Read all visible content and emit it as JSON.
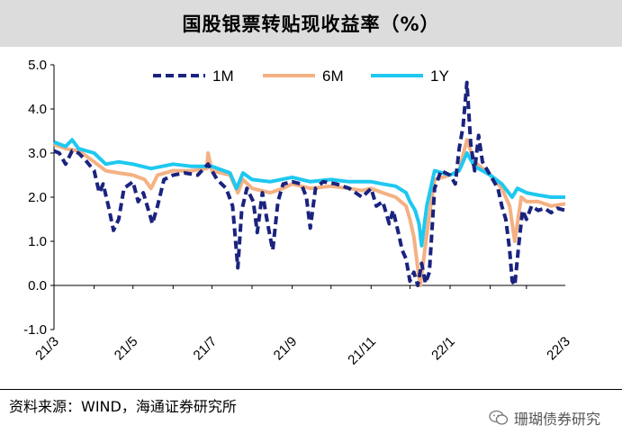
{
  "header": {
    "title": "国股银票转贴现收益率（%）"
  },
  "footer": {
    "source": "资料来源：WIND，海通证券研究所",
    "watermark": "珊瑚债券研究"
  },
  "chart_data": {
    "type": "line",
    "title": "国股银票转贴现收益率（%）",
    "xlabel": "",
    "ylabel": "",
    "ylim": [
      -1.0,
      5.0
    ],
    "yticks": [
      "-1.0",
      "0.0",
      "1.0",
      "2.0",
      "3.0",
      "4.0",
      "5.0"
    ],
    "xticks": [
      "21/3",
      "21/5",
      "21/7",
      "21/9",
      "21/11",
      "22/1",
      "22/3"
    ],
    "xrange": [
      "2021-03-01",
      "2022-03-31"
    ],
    "legend_position": "top",
    "grid": false,
    "series": [
      {
        "name": "1M",
        "color": "#1a237e",
        "style": "dashed",
        "points": [
          [
            "2021-03-01",
            3.05
          ],
          [
            "2021-03-05",
            3.0
          ],
          [
            "2021-03-10",
            2.75
          ],
          [
            "2021-03-15",
            3.05
          ],
          [
            "2021-03-20",
            3.0
          ],
          [
            "2021-03-25",
            2.85
          ],
          [
            "2021-04-01",
            2.6
          ],
          [
            "2021-04-05",
            2.1
          ],
          [
            "2021-04-08",
            2.3
          ],
          [
            "2021-04-12",
            1.8
          ],
          [
            "2021-04-16",
            1.25
          ],
          [
            "2021-04-20",
            1.5
          ],
          [
            "2021-04-24",
            2.2
          ],
          [
            "2021-05-01",
            2.35
          ],
          [
            "2021-05-05",
            1.9
          ],
          [
            "2021-05-09",
            2.1
          ],
          [
            "2021-05-13",
            1.7
          ],
          [
            "2021-05-16",
            1.4
          ],
          [
            "2021-05-20",
            1.8
          ],
          [
            "2021-05-25",
            2.4
          ],
          [
            "2021-06-01",
            2.5
          ],
          [
            "2021-06-10",
            2.55
          ],
          [
            "2021-06-20",
            2.5
          ],
          [
            "2021-06-28",
            2.75
          ],
          [
            "2021-07-05",
            2.4
          ],
          [
            "2021-07-12",
            2.2
          ],
          [
            "2021-07-17",
            1.8
          ],
          [
            "2021-07-21",
            0.4
          ],
          [
            "2021-07-24",
            1.7
          ],
          [
            "2021-07-28",
            2.2
          ],
          [
            "2021-08-02",
            1.9
          ],
          [
            "2021-08-05",
            1.2
          ],
          [
            "2021-08-09",
            2.1
          ],
          [
            "2021-08-13",
            1.4
          ],
          [
            "2021-08-17",
            0.8
          ],
          [
            "2021-08-21",
            1.9
          ],
          [
            "2021-08-25",
            2.3
          ],
          [
            "2021-09-01",
            2.35
          ],
          [
            "2021-09-08",
            2.3
          ],
          [
            "2021-09-12",
            2.0
          ],
          [
            "2021-09-15",
            1.3
          ],
          [
            "2021-09-19",
            2.2
          ],
          [
            "2021-09-25",
            2.35
          ],
          [
            "2021-10-05",
            2.3
          ],
          [
            "2021-10-15",
            2.2
          ],
          [
            "2021-10-25",
            2.0
          ],
          [
            "2021-11-01",
            2.2
          ],
          [
            "2021-11-05",
            1.8
          ],
          [
            "2021-11-10",
            1.9
          ],
          [
            "2021-11-15",
            1.4
          ],
          [
            "2021-11-18",
            1.7
          ],
          [
            "2021-11-22",
            1.2
          ],
          [
            "2021-11-25",
            0.8
          ],
          [
            "2021-11-28",
            0.6
          ],
          [
            "2021-12-01",
            0.1
          ],
          [
            "2021-12-04",
            0.3
          ],
          [
            "2021-12-07",
            0.0
          ],
          [
            "2021-12-10",
            0.5
          ],
          [
            "2021-12-13",
            0.05
          ],
          [
            "2021-12-16",
            0.3
          ],
          [
            "2021-12-20",
            2.2
          ],
          [
            "2021-12-25",
            2.6
          ],
          [
            "2022-01-01",
            2.5
          ],
          [
            "2022-01-05",
            2.3
          ],
          [
            "2022-01-08",
            3.1
          ],
          [
            "2022-01-11",
            3.6
          ],
          [
            "2022-01-14",
            4.6
          ],
          [
            "2022-01-17",
            3.2
          ],
          [
            "2022-01-20",
            2.6
          ],
          [
            "2022-01-23",
            3.4
          ],
          [
            "2022-01-26",
            2.8
          ],
          [
            "2022-02-01",
            2.5
          ],
          [
            "2022-02-07",
            2.2
          ],
          [
            "2022-02-10",
            1.8
          ],
          [
            "2022-02-13",
            1.5
          ],
          [
            "2022-02-16",
            0.8
          ],
          [
            "2022-02-18",
            0.1
          ],
          [
            "2022-02-20",
            0.0
          ],
          [
            "2022-02-23",
            0.9
          ],
          [
            "2022-02-26",
            1.7
          ],
          [
            "2022-03-01",
            1.5
          ],
          [
            "2022-03-05",
            1.8
          ],
          [
            "2022-03-10",
            1.7
          ],
          [
            "2022-03-15",
            1.75
          ],
          [
            "2022-03-20",
            1.65
          ],
          [
            "2022-03-25",
            1.75
          ],
          [
            "2022-03-31",
            1.7
          ]
        ]
      },
      {
        "name": "6M",
        "color": "#f4b183",
        "style": "solid",
        "points": [
          [
            "2021-03-01",
            3.2
          ],
          [
            "2021-03-10",
            3.1
          ],
          [
            "2021-03-20",
            3.05
          ],
          [
            "2021-03-25",
            2.95
          ],
          [
            "2021-04-01",
            2.8
          ],
          [
            "2021-04-10",
            2.6
          ],
          [
            "2021-04-20",
            2.55
          ],
          [
            "2021-05-01",
            2.5
          ],
          [
            "2021-05-10",
            2.4
          ],
          [
            "2021-05-15",
            2.2
          ],
          [
            "2021-05-20",
            2.5
          ],
          [
            "2021-06-01",
            2.6
          ],
          [
            "2021-06-15",
            2.6
          ],
          [
            "2021-06-27",
            2.65
          ],
          [
            "2021-06-28",
            3.0
          ],
          [
            "2021-07-01",
            2.6
          ],
          [
            "2021-07-15",
            2.5
          ],
          [
            "2021-07-21",
            2.1
          ],
          [
            "2021-07-25",
            2.4
          ],
          [
            "2021-08-01",
            2.2
          ],
          [
            "2021-08-15",
            2.1
          ],
          [
            "2021-08-25",
            2.2
          ],
          [
            "2021-09-01",
            2.3
          ],
          [
            "2021-09-15",
            2.2
          ],
          [
            "2021-10-01",
            2.25
          ],
          [
            "2021-10-15",
            2.2
          ],
          [
            "2021-10-25",
            2.15
          ],
          [
            "2021-11-01",
            2.2
          ],
          [
            "2021-11-10",
            2.1
          ],
          [
            "2021-11-20",
            2.0
          ],
          [
            "2021-11-28",
            1.8
          ],
          [
            "2021-12-01",
            1.5
          ],
          [
            "2021-12-04",
            1.1
          ],
          [
            "2021-12-07",
            0.4
          ],
          [
            "2021-12-09",
            0.0
          ],
          [
            "2021-12-12",
            0.7
          ],
          [
            "2021-12-16",
            1.6
          ],
          [
            "2021-12-20",
            2.4
          ],
          [
            "2022-01-01",
            2.5
          ],
          [
            "2022-01-08",
            2.6
          ],
          [
            "2022-01-14",
            3.3
          ],
          [
            "2022-01-20",
            2.8
          ],
          [
            "2022-02-01",
            2.5
          ],
          [
            "2022-02-10",
            2.2
          ],
          [
            "2022-02-16",
            1.8
          ],
          [
            "2022-02-20",
            1.0
          ],
          [
            "2022-02-25",
            2.0
          ],
          [
            "2022-03-01",
            1.9
          ],
          [
            "2022-03-10",
            1.9
          ],
          [
            "2022-03-20",
            1.8
          ],
          [
            "2022-03-31",
            1.85
          ]
        ]
      },
      {
        "name": "1Y",
        "color": "#1ec8f0",
        "style": "solid",
        "points": [
          [
            "2021-03-01",
            3.25
          ],
          [
            "2021-03-10",
            3.15
          ],
          [
            "2021-03-15",
            3.3
          ],
          [
            "2021-03-20",
            3.1
          ],
          [
            "2021-04-01",
            3.0
          ],
          [
            "2021-04-10",
            2.75
          ],
          [
            "2021-04-20",
            2.8
          ],
          [
            "2021-05-01",
            2.75
          ],
          [
            "2021-05-15",
            2.65
          ],
          [
            "2021-06-01",
            2.75
          ],
          [
            "2021-06-15",
            2.7
          ],
          [
            "2021-07-01",
            2.7
          ],
          [
            "2021-07-15",
            2.55
          ],
          [
            "2021-07-20",
            2.2
          ],
          [
            "2021-07-25",
            2.55
          ],
          [
            "2021-08-01",
            2.4
          ],
          [
            "2021-08-15",
            2.35
          ],
          [
            "2021-09-01",
            2.45
          ],
          [
            "2021-09-15",
            2.35
          ],
          [
            "2021-10-01",
            2.4
          ],
          [
            "2021-10-15",
            2.35
          ],
          [
            "2021-11-01",
            2.35
          ],
          [
            "2021-11-10",
            2.3
          ],
          [
            "2021-11-20",
            2.25
          ],
          [
            "2021-11-28",
            2.1
          ],
          [
            "2021-12-01",
            1.9
          ],
          [
            "2021-12-05",
            1.7
          ],
          [
            "2021-12-08",
            1.4
          ],
          [
            "2021-12-10",
            0.9
          ],
          [
            "2021-12-14",
            1.8
          ],
          [
            "2021-12-20",
            2.6
          ],
          [
            "2022-01-01",
            2.5
          ],
          [
            "2022-01-08",
            2.6
          ],
          [
            "2022-01-14",
            3.0
          ],
          [
            "2022-01-20",
            2.7
          ],
          [
            "2022-02-01",
            2.5
          ],
          [
            "2022-02-10",
            2.3
          ],
          [
            "2022-02-18",
            2.0
          ],
          [
            "2022-02-22",
            2.2
          ],
          [
            "2022-03-01",
            2.1
          ],
          [
            "2022-03-10",
            2.05
          ],
          [
            "2022-03-20",
            2.0
          ],
          [
            "2022-03-31",
            2.0
          ]
        ]
      }
    ]
  }
}
